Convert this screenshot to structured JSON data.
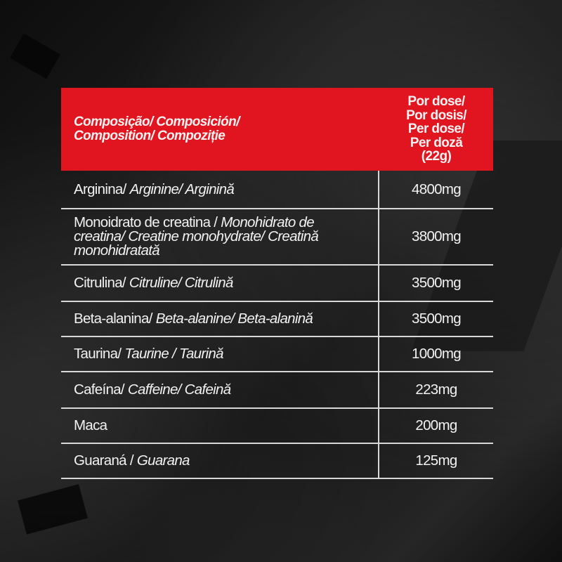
{
  "header": {
    "composition_label": "Composição/ Composición/ Composition/ Compoziție",
    "composition_line1": "Composição/ Composición/",
    "composition_line2": "Composition/ Compoziție",
    "dose_label": "Por dose/\nPor dosis/\nPer dose/\nPer doză\n(22g)"
  },
  "rows": [
    {
      "plain": "Arginina/ ",
      "italic": "Arginine/ Arginină",
      "amount": "4800mg"
    },
    {
      "plain": "Monoidrato de creatina / ",
      "italic": "Monohidrato de creatina/ Creatine monohydrate/ Creatină monohidratată",
      "amount": "3800mg"
    },
    {
      "plain": "Citrulina/ ",
      "italic": "Citruline/ Citrulină",
      "amount": "3500mg"
    },
    {
      "plain": "Beta-alanina/ ",
      "italic": "Beta-alanine/ Beta-alanină",
      "amount": "3500mg"
    },
    {
      "plain": "Taurina/ ",
      "italic": "Taurine / Taurină",
      "amount": "1000mg"
    },
    {
      "plain": "Cafeína/ ",
      "italic": "Caffeine/ Cafeină",
      "amount": "223mg"
    },
    {
      "plain": "Maca",
      "italic": "",
      "amount": "200mg"
    },
    {
      "plain": "Guaraná / ",
      "italic": "Guarana",
      "amount": "125mg"
    }
  ],
  "colors": {
    "header_bg": "#e0151f",
    "text": "#f2f2f2",
    "rule": "#d8d8d8"
  }
}
